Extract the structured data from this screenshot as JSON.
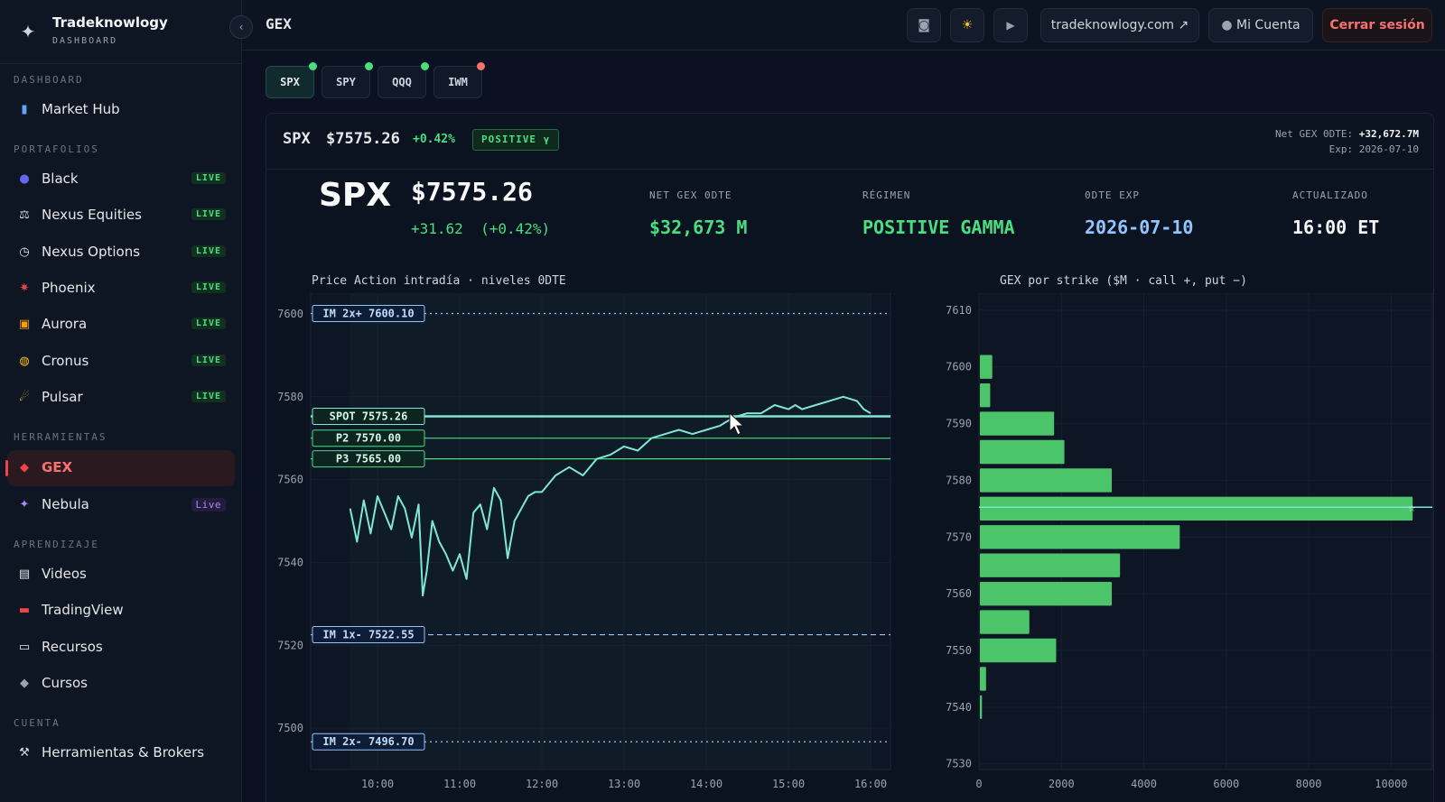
{
  "brand": {
    "name": "Tradeknowlogy",
    "sub": "DASHBOARD",
    "collapse": "‹"
  },
  "sidebar": {
    "sections": [
      "DASHBOARD",
      "PORTAFOLIOS",
      "HERRAMIENTAS",
      "APRENDIZAJE",
      "CUENTA"
    ],
    "items": [
      {
        "label": "Market Hub",
        "icon": "bar-chart-icon",
        "badge": ""
      },
      {
        "label": "Black",
        "icon": "orb-icon",
        "badge": "LIVE"
      },
      {
        "label": "Nexus Equities",
        "icon": "scale-icon",
        "badge": "LIVE"
      },
      {
        "label": "Nexus Options",
        "icon": "timer-icon",
        "badge": "LIVE"
      },
      {
        "label": "Phoenix",
        "icon": "phoenix-icon",
        "badge": "LIVE"
      },
      {
        "label": "Aurora",
        "icon": "sunrise-icon",
        "badge": "LIVE"
      },
      {
        "label": "Cronus",
        "icon": "planet-icon",
        "badge": "LIVE"
      },
      {
        "label": "Pulsar",
        "icon": "comet-icon",
        "badge": "LIVE"
      },
      {
        "label": "GEX",
        "icon": "diamond-icon",
        "badge": ""
      },
      {
        "label": "Nebula",
        "icon": "sparkle-icon",
        "badge": "Live"
      },
      {
        "label": "Videos",
        "icon": "clapper-icon",
        "badge": ""
      },
      {
        "label": "TradingView",
        "icon": "toolbox-icon",
        "badge": ""
      },
      {
        "label": "Recursos",
        "icon": "book-icon",
        "badge": ""
      },
      {
        "label": "Cursos",
        "icon": "graduation-cap-icon",
        "badge": ""
      },
      {
        "label": "Herramientas & Brokers",
        "icon": "wrench-icon",
        "badge": ""
      }
    ]
  },
  "header": {
    "title": "GEX",
    "site_link": "tradeknowlogy.com ↗",
    "account": "Mi Cuenta",
    "logout": "Cerrar sesión"
  },
  "tickers": [
    {
      "label": "SPX",
      "status": "green"
    },
    {
      "label": "SPY",
      "status": "green"
    },
    {
      "label": "QQQ",
      "status": "green"
    },
    {
      "label": "IWM",
      "status": "red"
    }
  ],
  "summary": {
    "symbol": "SPX",
    "price": "$7575.26",
    "change_pct": "+0.42%",
    "badge": "POSITIVE γ",
    "net_gex_label": "Net GEX 0DTE:",
    "net_gex_value": "+32,672.7M",
    "exp_label": "Exp:",
    "exp_value": "2026-07-10",
    "change_full": "+31.62  (+0.42%)"
  },
  "stats": [
    {
      "label": "NET GEX 0DTE",
      "value": "$32,673 M",
      "color": "#4ade80"
    },
    {
      "label": "RÉGIMEN",
      "value": "POSITIVE GAMMA",
      "color": "#4ade80"
    },
    {
      "label": "0DTE EXP",
      "value": "2026-07-10",
      "color": "#93c5fd"
    },
    {
      "label": "ACTUALIZADO",
      "value": "16:00 ET",
      "color": "#f3f4f6"
    }
  ],
  "colors": {
    "accent": "#4ade80",
    "line": "#7ee8d5",
    "danger": "#f87171",
    "level_blue": "#93c5fd"
  },
  "chart_data": [
    {
      "type": "line",
      "title": "Price Action intradía · niveles 0DTE",
      "x_ticks": [
        "10:00",
        "11:00",
        "12:00",
        "13:00",
        "14:00",
        "15:00",
        "16:00"
      ],
      "ylim": [
        7490,
        7605
      ],
      "y_ticks": [
        7500,
        7520,
        7540,
        7560,
        7580,
        7600
      ],
      "series": [
        {
          "x": [
            "09:40",
            "09:45",
            "09:50",
            "09:55",
            "10:00",
            "10:05",
            "10:10",
            "10:15",
            "10:20",
            "10:25",
            "10:30",
            "10:33",
            "10:36",
            "10:40",
            "10:45",
            "10:50",
            "10:55",
            "11:00",
            "11:05",
            "11:10",
            "11:15",
            "11:20",
            "11:25",
            "11:30",
            "11:35",
            "11:40",
            "11:45",
            "11:50",
            "11:55",
            "12:00",
            "12:10",
            "12:20",
            "12:30",
            "12:40",
            "12:50",
            "13:00",
            "13:10",
            "13:20",
            "13:30",
            "13:40",
            "13:50",
            "14:00",
            "14:10",
            "14:20",
            "14:30",
            "14:40",
            "14:50",
            "15:00",
            "15:05",
            "15:10",
            "15:20",
            "15:30",
            "15:40",
            "15:50",
            "15:55",
            "16:00"
          ],
          "y": [
            7553,
            7545,
            7555,
            7547,
            7556,
            7552,
            7548,
            7556,
            7553,
            7546,
            7554,
            7532,
            7538,
            7550,
            7545,
            7542,
            7538,
            7542,
            7536,
            7552,
            7554,
            7548,
            7558,
            7555,
            7541,
            7550,
            7553,
            7556,
            7557,
            7557,
            7561,
            7563,
            7561,
            7565,
            7566,
            7568,
            7567,
            7570,
            7571,
            7572,
            7571,
            7572,
            7573,
            7575,
            7576,
            7576,
            7578,
            7577,
            7578,
            7577,
            7578,
            7579,
            7580,
            7579,
            7577,
            7576
          ]
        }
      ],
      "levels": [
        {
          "label": "IM 2x+",
          "value": 7600.1,
          "text": "7600.10",
          "style": "dotted",
          "color": "#93c5fd"
        },
        {
          "label": "SPOT",
          "value": 7575.26,
          "text": "7575.26",
          "style": "solid",
          "color": "#7ee8d5"
        },
        {
          "label": "P2",
          "value": 7570.0,
          "text": "7570.00",
          "style": "solid",
          "color": "#4ade80"
        },
        {
          "label": "P3",
          "value": 7565.0,
          "text": "7565.00",
          "style": "solid",
          "color": "#4ade80"
        },
        {
          "label": "IM 1x-",
          "value": 7522.55,
          "text": "7522.55",
          "style": "dashed",
          "color": "#93c5fd"
        },
        {
          "label": "IM 2x-",
          "value": 7496.7,
          "text": "7496.70",
          "style": "dotted",
          "color": "#93c5fd"
        }
      ]
    },
    {
      "type": "bar",
      "orientation": "horizontal",
      "title": "GEX por strike ($M · call +, put −)",
      "xlim": [
        0,
        11000
      ],
      "x_ticks": [
        0,
        2000,
        4000,
        6000,
        8000,
        10000
      ],
      "ylim": [
        7529,
        7613
      ],
      "y_ticks": [
        7530,
        7540,
        7550,
        7560,
        7570,
        7580,
        7590,
        7600,
        7610
      ],
      "strikes": [
        7540,
        7545,
        7550,
        7555,
        7560,
        7565,
        7570,
        7575,
        7580,
        7585,
        7590,
        7595,
        7600
      ],
      "values": [
        50,
        150,
        1850,
        1200,
        3200,
        3400,
        4850,
        10500,
        3200,
        2050,
        1800,
        250,
        300
      ],
      "spot": 7575.26
    }
  ]
}
